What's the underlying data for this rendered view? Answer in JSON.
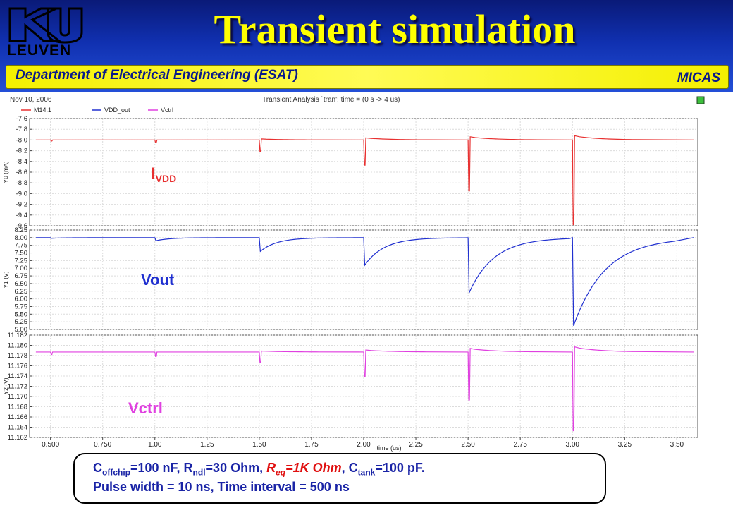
{
  "header": {
    "logo_text": "LEUVEN",
    "title": "Transient simulation",
    "department": "Department of Electrical Engineering (ESAT)",
    "group": "MICAS"
  },
  "plot_header": {
    "date": "Nov 10, 2006",
    "analysis": "Transient Analysis `tran': time = (0 s -> 4 us)"
  },
  "legend": [
    {
      "name": "M14:1",
      "color": "#e83030"
    },
    {
      "name": "VDD_out",
      "color": "#2030d0"
    },
    {
      "name": "Vctrl",
      "color": "#e040e0"
    }
  ],
  "colors": {
    "red": "#e83030",
    "blue": "#2030d0",
    "magenta": "#e040e0"
  },
  "chart_data": {
    "type": "line",
    "x_unit": "us",
    "xlabel": "time (us)",
    "xlim": [
      0.4,
      3.6
    ],
    "x_ticks": [
      "0.500",
      "0.750",
      "1.00",
      "1.25",
      "1.50",
      "1.75",
      "2.00",
      "2.25",
      "2.50",
      "2.75",
      "3.00",
      "3.25",
      "3.50"
    ],
    "pulse_times_us": [
      0.5,
      1.0,
      1.5,
      2.0,
      2.5,
      3.0
    ],
    "grid": true,
    "legend_placement": "top-left",
    "panels": [
      {
        "series_name": "M14:1",
        "annotation": {
          "main": "I",
          "sub": "VDD"
        },
        "ylabel": "Y0 (mA)",
        "ylim": [
          -9.6,
          -7.6
        ],
        "y_ticks": [
          "-7.6",
          "-7.8",
          "-8.0",
          "-8.2",
          "-8.4",
          "-8.6",
          "-8.8",
          "-9.0",
          "-9.2",
          "-9.4",
          "-9.6"
        ],
        "baseline": -8.0,
        "pulses": [
          {
            "t": 0.5,
            "min": -8.02,
            "overshoot": 0.0
          },
          {
            "t": 1.0,
            "min": -8.05,
            "overshoot": 0.0
          },
          {
            "t": 1.5,
            "min": -8.22,
            "overshoot": 0.02
          },
          {
            "t": 2.0,
            "min": -8.47,
            "overshoot": 0.04
          },
          {
            "t": 2.5,
            "min": -8.95,
            "overshoot": 0.06
          },
          {
            "t": 3.0,
            "min": -9.58,
            "overshoot": 0.08
          }
        ]
      },
      {
        "series_name": "VDD_out",
        "annotation": {
          "main": "Vout",
          "sub": ""
        },
        "ylabel": "Y1 (V)",
        "ylim": [
          5.0,
          8.25
        ],
        "y_ticks": [
          "8.25",
          "8.00",
          "7.75",
          "7.50",
          "7.25",
          "7.00",
          "6.75",
          "6.50",
          "6.25",
          "6.00",
          "5.75",
          "5.50",
          "5.25",
          "5.00"
        ],
        "baseline": 8.0,
        "pulses": [
          {
            "t": 0.5,
            "min": 7.98
          },
          {
            "t": 1.0,
            "min": 7.9
          },
          {
            "t": 1.5,
            "min": 7.55
          },
          {
            "t": 2.0,
            "min": 7.1
          },
          {
            "t": 2.5,
            "min": 6.2
          },
          {
            "t": 3.0,
            "min": 5.12
          }
        ]
      },
      {
        "series_name": "Vctrl",
        "annotation": {
          "main": "Vctrl",
          "sub": ""
        },
        "ylabel": "Y2 (V)",
        "ylim": [
          11.162,
          11.182
        ],
        "y_ticks": [
          "11.182",
          "11.180",
          "11.178",
          "11.176",
          "11.174",
          "11.172",
          "11.170",
          "11.168",
          "11.166",
          "11.164",
          "11.162"
        ],
        "baseline": 11.1787,
        "pulses": [
          {
            "t": 0.5,
            "min": 11.1782,
            "overshoot": 0.0
          },
          {
            "t": 1.0,
            "min": 11.1778,
            "overshoot": 0.0
          },
          {
            "t": 1.5,
            "min": 11.1766,
            "overshoot": 0.0002
          },
          {
            "t": 2.0,
            "min": 11.1738,
            "overshoot": 0.0004
          },
          {
            "t": 2.5,
            "min": 11.1693,
            "overshoot": 0.0007
          },
          {
            "t": 3.0,
            "min": 11.1633,
            "overshoot": 0.001
          }
        ]
      }
    ]
  },
  "caption": {
    "c_offchip": {
      "main": "C",
      "sub": "offchip",
      "rest": "=100 nF, "
    },
    "r_ndl": {
      "main": "R",
      "sub": "ndl",
      "rest": "=30 Ohm, "
    },
    "r_eq": {
      "main": "R",
      "sub": "eq",
      "rest": "=1K Ohm"
    },
    "c_tank": {
      "pre": ", ",
      "main": "C",
      "sub": "tank",
      "rest": "=100 pF."
    },
    "line2": "Pulse width = 10 ns,  Time interval = 500 ns"
  }
}
